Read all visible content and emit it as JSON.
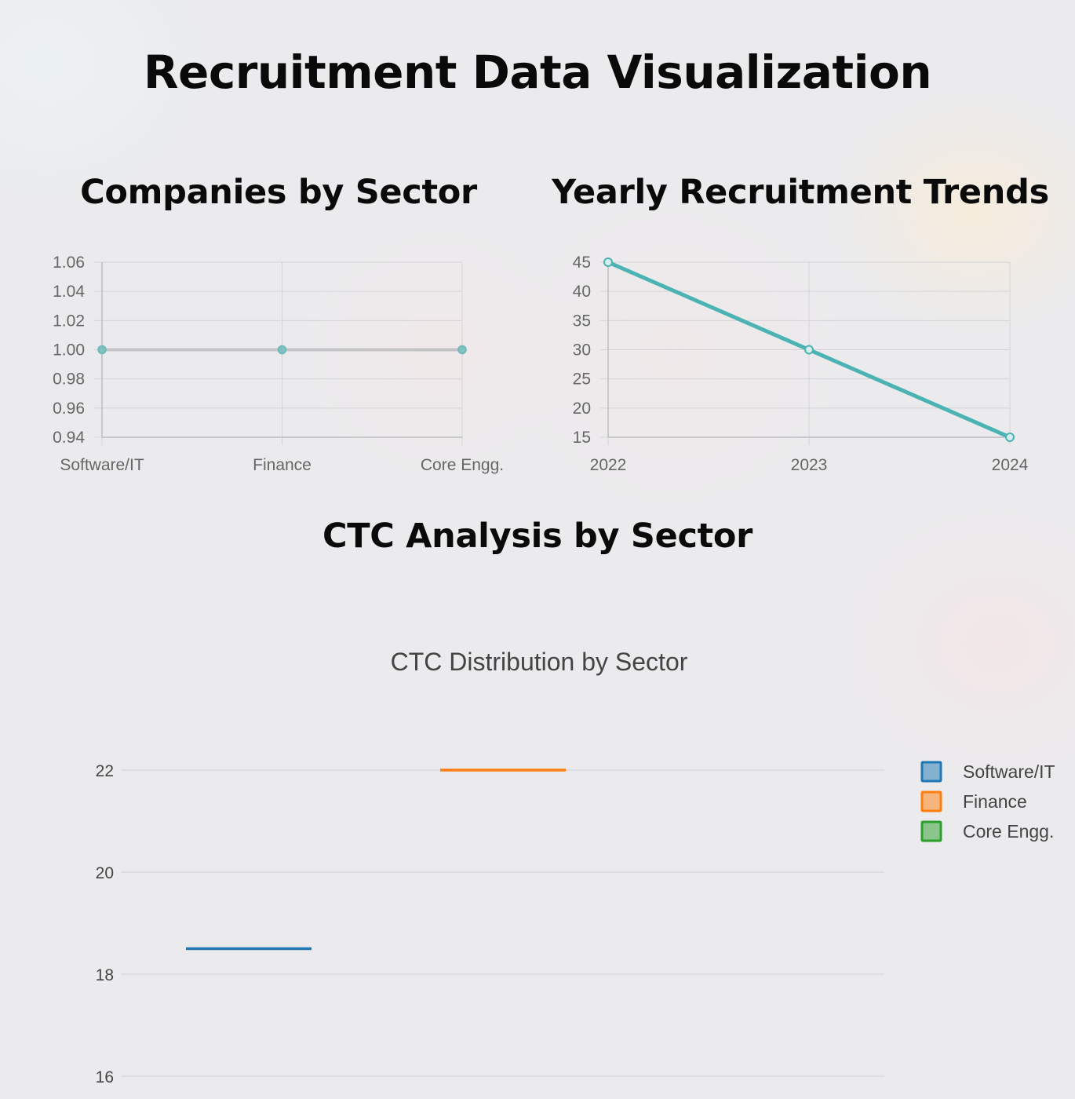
{
  "page": {
    "title": "Recruitment Data Visualization"
  },
  "sections": {
    "companies_by_sector": "Companies by Sector",
    "yearly_trends": "Yearly Recruitment Trends",
    "ctc_analysis": "CTC Analysis by Sector"
  },
  "colors": {
    "teal": "#4bb3b3",
    "software": "#1f77b4",
    "finance": "#ff7f0e",
    "core": "#2ca02c",
    "grid": "#d4d4d6",
    "tick_text": "#666666",
    "plot_text": "#444444"
  },
  "chart_data": [
    {
      "type": "line",
      "categories": [
        "Software/IT",
        "Finance",
        "Core Engg."
      ],
      "values": [
        1,
        1,
        1
      ],
      "ylim": [
        0.94,
        1.06
      ],
      "yticks": [
        "1.06",
        "1.04",
        "1.02",
        "1.00",
        "0.98",
        "0.96",
        "0.94"
      ],
      "grid": true,
      "color": "#4bb3b3"
    },
    {
      "type": "line",
      "categories": [
        "2022",
        "2023",
        "2024"
      ],
      "values": [
        45,
        30,
        15
      ],
      "ylim": [
        15,
        45
      ],
      "yticks": [
        "45",
        "40",
        "35",
        "30",
        "25",
        "20",
        "15"
      ],
      "grid": true,
      "color": "#4bb3b3"
    },
    {
      "type": "bar",
      "title": "CTC Distribution by Sector",
      "series": [
        {
          "name": "Software/IT",
          "values": [
            18.5
          ],
          "color": "#1f77b4"
        },
        {
          "name": "Finance",
          "values": [
            22
          ],
          "color": "#ff7f0e"
        },
        {
          "name": "Core Engg.",
          "values": [],
          "color": "#2ca02c"
        }
      ],
      "yticks": [
        "22",
        "20",
        "18",
        "16"
      ],
      "legend": "right",
      "grid": true
    }
  ]
}
